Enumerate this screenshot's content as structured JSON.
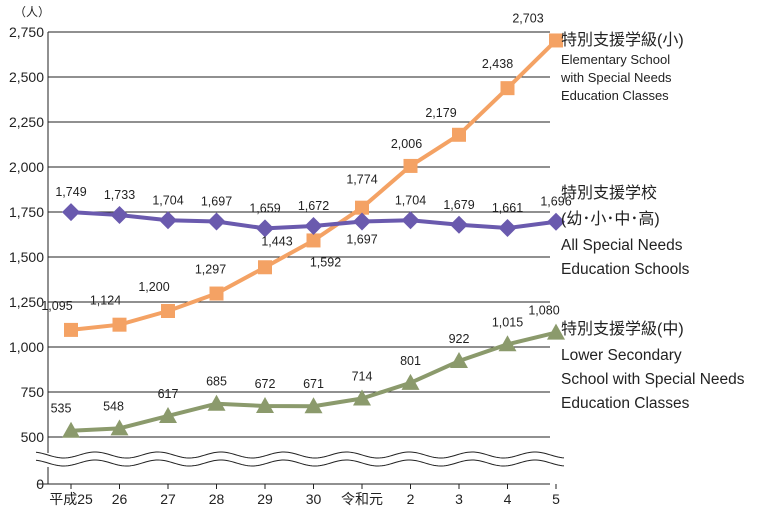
{
  "chart_data": {
    "type": "line",
    "unit_label": "（人）",
    "categories": [
      "平成25",
      "26",
      "27",
      "28",
      "29",
      "30",
      "令和元",
      "2",
      "3",
      "4",
      "5"
    ],
    "y_ticks": [
      "0",
      "500",
      "750",
      "1,000",
      "1,250",
      "1,500",
      "1,750",
      "2,000",
      "2,250",
      "2,500",
      "2,750"
    ],
    "axis_break": true,
    "grid": true,
    "series": [
      {
        "key": "elementary",
        "name_jp": "特別支援学級(小)",
        "name_en": [
          "Elementary School",
          "with Special Needs",
          "Education Classes"
        ],
        "color": "#f4a264",
        "marker": "square",
        "values": [
          1095,
          1124,
          1200,
          1297,
          1443,
          1592,
          1774,
          2006,
          2179,
          2438,
          2703
        ],
        "labels": [
          "1,095",
          "1,124",
          "1,200",
          "1,297",
          "1,443",
          "1,592",
          "1,774",
          "2,006",
          "2,179",
          "2,438",
          "2,703"
        ]
      },
      {
        "key": "schools",
        "name_jp": "特別支援学校",
        "name_jp2": "(幼･小･中･高)",
        "name_en": [
          "All Special Needs",
          "Education Schools"
        ],
        "color": "#6a5aae",
        "marker": "diamond",
        "values": [
          1749,
          1733,
          1704,
          1697,
          1659,
          1672,
          1697,
          1704,
          1679,
          1661,
          1696
        ],
        "labels": [
          "1,749",
          "1,733",
          "1,704",
          "1,697",
          "1,659",
          "1,672",
          "1,697",
          "1,704",
          "1,679",
          "1,661",
          "1,696"
        ]
      },
      {
        "key": "lower_secondary",
        "name_jp": "特別支援学級(中)",
        "name_en": [
          "Lower Secondary",
          "School with Special Needs",
          "Education Classes"
        ],
        "color": "#8b9a6c",
        "marker": "triangle",
        "values": [
          535,
          548,
          617,
          685,
          672,
          671,
          714,
          801,
          922,
          1015,
          1080
        ],
        "labels": [
          "535",
          "548",
          "617",
          "685",
          "672",
          "671",
          "714",
          "801",
          "922",
          "1,015",
          "1,080"
        ]
      }
    ]
  }
}
